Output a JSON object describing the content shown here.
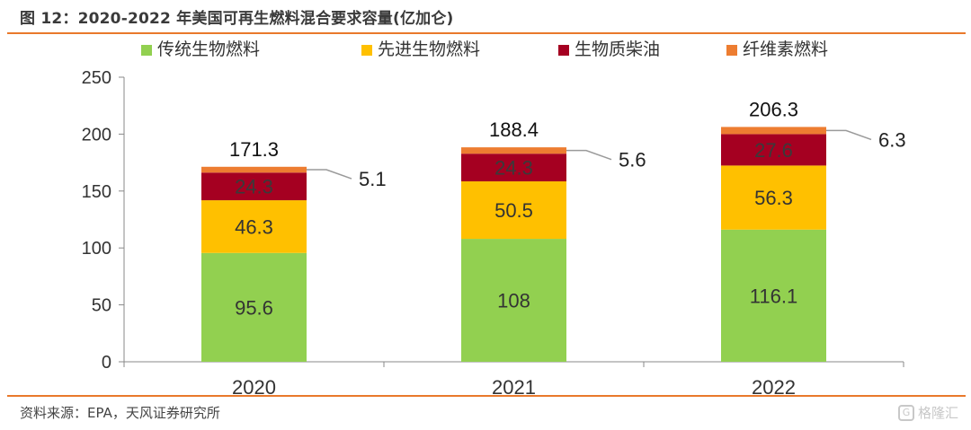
{
  "figure": {
    "title": "图 12：2020-2022 年美国可再生燃料混合要求容量(亿加仑)",
    "source": "资料来源：EPA，天风证券研究所",
    "watermark": "格隆汇",
    "watermark_logo": "G"
  },
  "chart_data": {
    "type": "bar",
    "stacked": true,
    "title": "2020-2022 年美国可再生燃料混合要求容量(亿加仑)",
    "xlabel": "",
    "ylabel": "",
    "categories": [
      "2020",
      "2021",
      "2022"
    ],
    "series": [
      {
        "name": "传统生物燃料",
        "color": "#92d050",
        "values": [
          95.6,
          108,
          116.1
        ],
        "labels": [
          "95.6",
          "108",
          "116.1"
        ],
        "label_color": "#333333"
      },
      {
        "name": "先进生物燃料",
        "color": "#ffc000",
        "values": [
          46.3,
          50.5,
          56.3
        ],
        "labels": [
          "46.3",
          "50.5",
          "56.3"
        ],
        "label_color": "#333333"
      },
      {
        "name": "生物质柴油",
        "color": "#a50021",
        "values": [
          24.3,
          24.3,
          27.6
        ],
        "labels": [
          "24.3",
          "24.3",
          "27.6"
        ],
        "label_color": "#3a3a3a"
      },
      {
        "name": "纤维素燃料",
        "color": "#ed7d31",
        "values": [
          5.1,
          5.6,
          6.3
        ],
        "labels": [
          "5.1",
          "5.6",
          "6.3"
        ],
        "label_color": "#222222",
        "callout": true
      }
    ],
    "totals": [
      "171.3",
      "188.4",
      "206.3"
    ],
    "ylim": [
      0,
      250
    ],
    "yticks": [
      "0",
      "50",
      "100",
      "150",
      "200",
      "250"
    ],
    "grid": false,
    "legend_position": "top"
  }
}
